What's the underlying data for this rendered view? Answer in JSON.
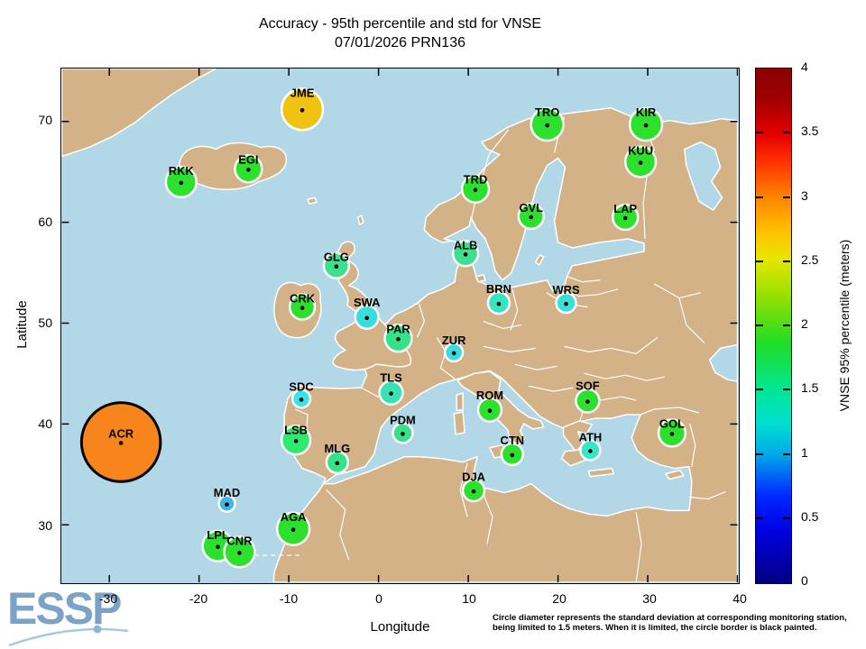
{
  "title": {
    "line1": "Accuracy - 95th percentile and std for VNSE",
    "line2": "07/01/2026 PRN136"
  },
  "axis": {
    "x_label": "Longitude",
    "y_label": "Latitude",
    "x_ticks": [
      -30,
      -20,
      -10,
      0,
      10,
      20,
      30,
      40
    ],
    "y_ticks": [
      30,
      40,
      50,
      60,
      70
    ],
    "x_range": [
      -35.3,
      40
    ],
    "y_range": [
      24.3,
      75.25
    ]
  },
  "colorbar": {
    "label": "VNSE 95% percentile (meters)",
    "min": 0,
    "max": 4,
    "ticks": [
      0,
      0.5,
      1,
      1.5,
      2,
      2.5,
      3,
      3.5,
      4
    ],
    "colormap": "jet"
  },
  "footnote": {
    "line1": "Circle diameter represents the standard deviation at corresponding monitoring station,",
    "line2": "being limited to 1.5 meters. When it is limited, the circle border is black painted."
  },
  "logo": {
    "text": "ESSP"
  },
  "map_colors": {
    "sea": "#b2d8e8",
    "land": "#d2b286",
    "coast": "#ffffff"
  },
  "chart_data": {
    "type": "scatter",
    "basemap": "Europe",
    "color_encodes": "VNSE 95% percentile (meters)",
    "size_encodes": "standard deviation (limited to 1.5 m)",
    "stations": [
      {
        "id": "JME",
        "lon": -8.5,
        "lat": 71.2,
        "color": "#f0c211",
        "radius_px": 23,
        "std_limited": false
      },
      {
        "id": "TRO",
        "lon": 18.8,
        "lat": 69.7,
        "color": "#2ee02e",
        "radius_px": 18,
        "std_limited": false
      },
      {
        "id": "KIR",
        "lon": 29.8,
        "lat": 69.7,
        "color": "#2ee02e",
        "radius_px": 18,
        "std_limited": false
      },
      {
        "id": "KUU",
        "lon": 29.2,
        "lat": 66.0,
        "color": "#2ee02e",
        "radius_px": 17,
        "std_limited": false
      },
      {
        "id": "EGI",
        "lon": -14.5,
        "lat": 65.3,
        "color": "#2ee02e",
        "radius_px": 15,
        "std_limited": false
      },
      {
        "id": "RKK",
        "lon": -22.0,
        "lat": 64.0,
        "color": "#2ee02e",
        "radius_px": 17,
        "std_limited": false
      },
      {
        "id": "TRD",
        "lon": 10.8,
        "lat": 63.3,
        "color": "#2ee02e",
        "radius_px": 15,
        "std_limited": false
      },
      {
        "id": "GVL",
        "lon": 17.0,
        "lat": 60.6,
        "color": "#2ee02e",
        "radius_px": 14,
        "std_limited": false
      },
      {
        "id": "LAP",
        "lon": 27.5,
        "lat": 60.5,
        "color": "#2ee02e",
        "radius_px": 14,
        "std_limited": false
      },
      {
        "id": "ALB",
        "lon": 9.7,
        "lat": 56.9,
        "color": "#3ce08e",
        "radius_px": 14,
        "std_limited": false
      },
      {
        "id": "GLG",
        "lon": -4.7,
        "lat": 55.7,
        "color": "#3ce08e",
        "radius_px": 14,
        "std_limited": false
      },
      {
        "id": "BRN",
        "lon": 13.4,
        "lat": 52.0,
        "color": "#36e4c0",
        "radius_px": 12,
        "std_limited": false
      },
      {
        "id": "WRS",
        "lon": 20.9,
        "lat": 52.0,
        "color": "#3cdfd8",
        "radius_px": 11,
        "std_limited": false
      },
      {
        "id": "CRK",
        "lon": -8.5,
        "lat": 51.6,
        "color": "#2ee02e",
        "radius_px": 14,
        "std_limited": false
      },
      {
        "id": "SWA",
        "lon": -1.3,
        "lat": 50.6,
        "color": "#38dede",
        "radius_px": 13,
        "std_limited": false
      },
      {
        "id": "PAR",
        "lon": 2.2,
        "lat": 48.5,
        "color": "#35e28a",
        "radius_px": 15,
        "std_limited": false
      },
      {
        "id": "ZUR",
        "lon": 8.4,
        "lat": 47.1,
        "color": "#38dede",
        "radius_px": 10,
        "std_limited": false
      },
      {
        "id": "TLS",
        "lon": 1.4,
        "lat": 43.1,
        "color": "#38e2b2",
        "radius_px": 13,
        "std_limited": false
      },
      {
        "id": "SDC",
        "lon": -8.6,
        "lat": 42.5,
        "color": "#38e4e4",
        "radius_px": 10,
        "std_limited": false
      },
      {
        "id": "SOF",
        "lon": 23.3,
        "lat": 42.3,
        "color": "#2ee02e",
        "radius_px": 13,
        "std_limited": false
      },
      {
        "id": "ROM",
        "lon": 12.4,
        "lat": 41.4,
        "color": "#2ee02e",
        "radius_px": 13,
        "std_limited": false
      },
      {
        "id": "PDM",
        "lon": 2.7,
        "lat": 39.1,
        "color": "#35e28a",
        "radius_px": 11,
        "std_limited": false
      },
      {
        "id": "GOL",
        "lon": 32.7,
        "lat": 39.1,
        "color": "#2ee02e",
        "radius_px": 15,
        "std_limited": false
      },
      {
        "id": "LSB",
        "lon": -9.2,
        "lat": 38.4,
        "color": "#2ee96e",
        "radius_px": 16,
        "std_limited": false
      },
      {
        "id": "ACR",
        "lon": -28.7,
        "lat": 38.2,
        "color": "#f8841c",
        "radius_px": 44,
        "std_limited": true
      },
      {
        "id": "ATH",
        "lon": 23.6,
        "lat": 37.4,
        "color": "#38e5c6",
        "radius_px": 11,
        "std_limited": false
      },
      {
        "id": "CTN",
        "lon": 14.9,
        "lat": 37.0,
        "color": "#2ee02e",
        "radius_px": 12,
        "std_limited": false
      },
      {
        "id": "MLG",
        "lon": -4.6,
        "lat": 36.2,
        "color": "#35e28a",
        "radius_px": 12,
        "std_limited": false
      },
      {
        "id": "DJA",
        "lon": 10.6,
        "lat": 33.4,
        "color": "#2ee02e",
        "radius_px": 12,
        "std_limited": false
      },
      {
        "id": "MAD",
        "lon": -16.9,
        "lat": 32.1,
        "color": "#44b5e8",
        "radius_px": 9,
        "std_limited": false
      },
      {
        "id": "AGA",
        "lon": -9.5,
        "lat": 29.6,
        "color": "#2ee02e",
        "radius_px": 18,
        "std_limited": false
      },
      {
        "id": "LPL",
        "lon": -17.9,
        "lat": 27.9,
        "color": "#2ee02e",
        "radius_px": 17,
        "std_limited": false
      },
      {
        "id": "CNR",
        "lon": -15.5,
        "lat": 27.3,
        "color": "#2ee02e",
        "radius_px": 17,
        "std_limited": false
      }
    ]
  }
}
